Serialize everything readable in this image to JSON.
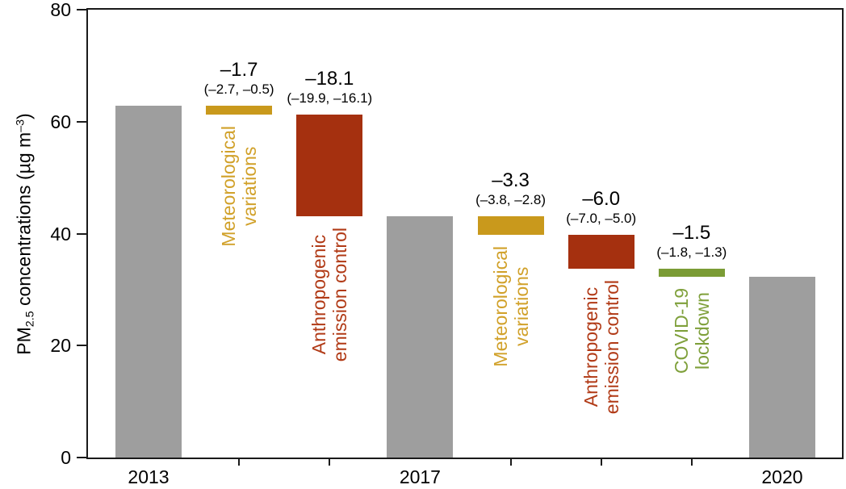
{
  "figure": {
    "background": "#ffffff",
    "axis_color": "#1a1a1a",
    "text_color": "#000000"
  },
  "chart_data": {
    "type": "bar",
    "subtype": "waterfall",
    "title": "",
    "xlabel": "",
    "ylabel_parts": {
      "prefix": "PM",
      "subscript": "2.5",
      "middle": " concentrations (µg m",
      "superscript": "–3",
      "suffix": ")"
    },
    "ylim": [
      0,
      80
    ],
    "yticks": [
      "0",
      "20",
      "40",
      "60",
      "80"
    ],
    "ytick_values": [
      0,
      20,
      40,
      60,
      80
    ],
    "grid": false,
    "legend": "none",
    "spines": "box",
    "colors": {
      "total": "#9e9e9e",
      "meteorological": "#c9991c",
      "anthropogenic": "#a5300f",
      "covid": "#7b9c35",
      "meteorological_text": "#d1a12a",
      "anthropogenic_text": "#b13a16",
      "covid_text": "#7fa03b"
    },
    "bars": [
      {
        "kind": "total",
        "year": "2013",
        "value": 62.9,
        "start": 0,
        "end": 62.9,
        "color_key": "total"
      },
      {
        "kind": "delta",
        "category": "Meteorological variations",
        "label_lines": [
          "Meteorological",
          "variations"
        ],
        "change": -1.7,
        "ci": [
          -2.7,
          -0.5
        ],
        "value_text": "–1.7",
        "ci_text": "(–2.7, –0.5)",
        "start": 62.9,
        "end": 61.2,
        "color_key": "meteorological",
        "text_color_key": "meteorological_text"
      },
      {
        "kind": "delta",
        "category": "Anthropogenic emission control",
        "label_lines": [
          "Anthropogenic",
          "emission control"
        ],
        "change": -18.1,
        "ci": [
          -19.9,
          -16.1
        ],
        "value_text": "–18.1",
        "ci_text": "(–19.9, –16.1)",
        "start": 61.2,
        "end": 43.1,
        "color_key": "anthropogenic",
        "text_color_key": "anthropogenic_text"
      },
      {
        "kind": "total",
        "year": "2017",
        "value": 43.1,
        "start": 0,
        "end": 43.1,
        "color_key": "total"
      },
      {
        "kind": "delta",
        "category": "Meteorological variations",
        "label_lines": [
          "Meteorological",
          "variations"
        ],
        "change": -3.3,
        "ci": [
          -3.8,
          -2.8
        ],
        "value_text": "–3.3",
        "ci_text": "(–3.8, –2.8)",
        "start": 43.1,
        "end": 39.8,
        "color_key": "meteorological",
        "text_color_key": "meteorological_text"
      },
      {
        "kind": "delta",
        "category": "Anthropogenic emission control",
        "label_lines": [
          "Anthropogenic",
          "emission control"
        ],
        "change": -6.0,
        "ci": [
          -7.0,
          -5.0
        ],
        "value_text": "–6.0",
        "ci_text": "(–7.0, –5.0)",
        "start": 39.8,
        "end": 33.8,
        "color_key": "anthropogenic",
        "text_color_key": "anthropogenic_text"
      },
      {
        "kind": "delta",
        "category": "COVID-19 lockdown",
        "label_lines": [
          "COVID-19",
          "lockdown"
        ],
        "change": -1.5,
        "ci": [
          -1.8,
          -1.3
        ],
        "value_text": "–1.5",
        "ci_text": "(–1.8, –1.3)",
        "start": 33.8,
        "end": 32.3,
        "color_key": "covid",
        "text_color_key": "covid_text"
      },
      {
        "kind": "total",
        "year": "2020",
        "value": 32.3,
        "start": 0,
        "end": 32.3,
        "color_key": "total"
      }
    ]
  }
}
